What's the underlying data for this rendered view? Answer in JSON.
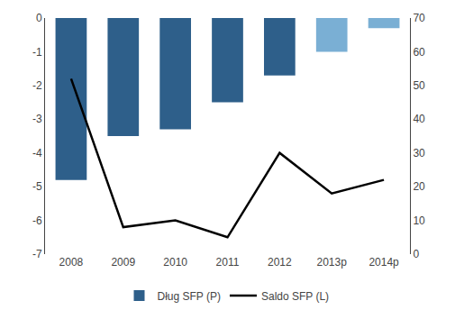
{
  "chart_data": {
    "type": "bar",
    "categories": [
      "2008",
      "2009",
      "2010",
      "2011",
      "2012",
      "2013p",
      "2014p"
    ],
    "series": [
      {
        "name": "Dług SFP (P)",
        "type": "bar",
        "colors": [
          "#2E5F8A",
          "#2E5F8A",
          "#2E5F8A",
          "#2E5F8A",
          "#2E5F8A",
          "#7AAFD4",
          "#7AAFD4"
        ],
        "values": [
          -4.8,
          -3.5,
          -3.3,
          -2.5,
          -1.7,
          -1.0,
          -0.3
        ]
      },
      {
        "name": "Saldo SFP (L)",
        "type": "line",
        "color": "#000000",
        "axis": "y2",
        "values": [
          52,
          8,
          10,
          5,
          30,
          18,
          22
        ]
      }
    ],
    "ylim": [
      -7,
      0
    ],
    "yticks": [
      0,
      -1,
      -2,
      -3,
      -4,
      -5,
      -6,
      -7
    ],
    "y2lim": [
      0,
      70
    ],
    "y2ticks": [
      0,
      10,
      20,
      30,
      40,
      50,
      60,
      70
    ],
    "grid": false,
    "legend": "bottom"
  }
}
